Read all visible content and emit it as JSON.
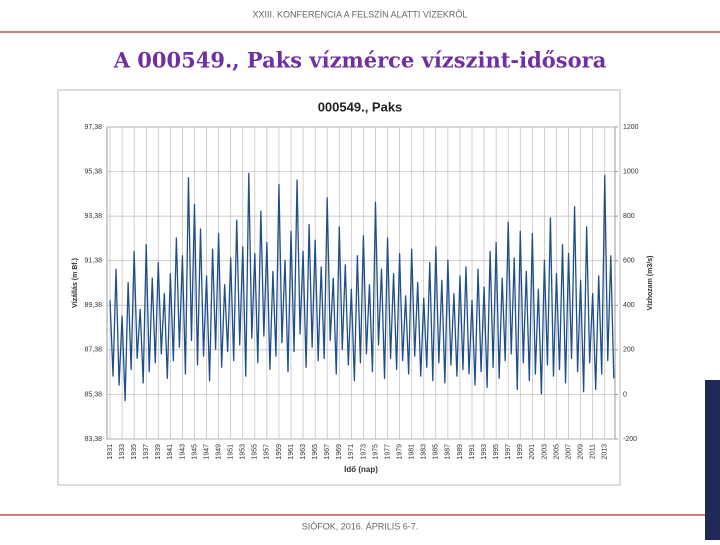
{
  "header": "XXIII. KONFERENCIA A FELSZÍN ALATTI VÍZEKRŐL",
  "slide_title": "A 000549., Paks vízmérce vízszint-idősora",
  "footer": "SIÓFOK, 2016. ÁPRILIS 6-7.",
  "chart_data": {
    "type": "line",
    "title": "000549., Paks",
    "xlabel": "Idő (nap)",
    "ylabel": "Vízállás (m Bf.)",
    "y2label": "Vízhozam (m3/s)",
    "xlim": [
      1930.5,
      2014.7
    ],
    "xticks": [
      1931,
      1933,
      1935,
      1937,
      1939,
      1941,
      1943,
      1945,
      1947,
      1949,
      1951,
      1953,
      1955,
      1957,
      1959,
      1961,
      1963,
      1965,
      1967,
      1969,
      1971,
      1973,
      1975,
      1977,
      1979,
      1981,
      1983,
      1985,
      1987,
      1989,
      1991,
      1993,
      1995,
      1997,
      1999,
      2001,
      2003,
      2005,
      2007,
      2009,
      2011,
      2013
    ],
    "ylim": [
      83.38,
      97.38
    ],
    "yticks": [
      {
        "value": 83.38,
        "label": "83,38"
      },
      {
        "value": 85.38,
        "label": "85,38"
      },
      {
        "value": 87.38,
        "label": "87,38"
      },
      {
        "value": 89.38,
        "label": "89,38"
      },
      {
        "value": 91.38,
        "label": "91,38"
      },
      {
        "value": 93.38,
        "label": "93,38"
      },
      {
        "value": 95.38,
        "label": "95,38"
      },
      {
        "value": 97.38,
        "label": "97,38"
      }
    ],
    "y2lim": [
      -200,
      1200
    ],
    "y2ticks": [
      -200,
      0,
      200,
      400,
      600,
      800,
      1000,
      1200
    ],
    "grid": true,
    "x": [
      1931,
      1931.5,
      1932,
      1932.5,
      1933,
      1933.5,
      1934,
      1934.5,
      1935,
      1935.5,
      1936,
      1936.5,
      1937,
      1937.5,
      1938,
      1938.5,
      1939,
      1939.5,
      1940,
      1940.5,
      1941,
      1941.5,
      1942,
      1942.5,
      1943,
      1943.5,
      1944,
      1944.5,
      1945,
      1945.5,
      1946,
      1946.5,
      1947,
      1947.5,
      1948,
      1948.5,
      1949,
      1949.5,
      1950,
      1950.5,
      1951,
      1951.5,
      1952,
      1952.5,
      1953,
      1953.5,
      1954,
      1954.5,
      1955,
      1955.5,
      1956,
      1956.5,
      1957,
      1957.5,
      1958,
      1958.5,
      1959,
      1959.5,
      1960,
      1960.5,
      1961,
      1961.5,
      1962,
      1962.5,
      1963,
      1963.5,
      1964,
      1964.5,
      1965,
      1965.5,
      1966,
      1966.5,
      1967,
      1967.5,
      1968,
      1968.5,
      1969,
      1969.5,
      1970,
      1970.5,
      1971,
      1971.5,
      1972,
      1972.5,
      1973,
      1973.5,
      1974,
      1974.5,
      1975,
      1975.5,
      1976,
      1976.5,
      1977,
      1977.5,
      1978,
      1978.5,
      1979,
      1979.5,
      1980,
      1980.5,
      1981,
      1981.5,
      1982,
      1982.5,
      1983,
      1983.5,
      1984,
      1984.5,
      1985,
      1985.5,
      1986,
      1986.5,
      1987,
      1987.5,
      1988,
      1988.5,
      1989,
      1989.5,
      1990,
      1990.5,
      1991,
      1991.5,
      1992,
      1992.5,
      1993,
      1993.5,
      1994,
      1994.5,
      1995,
      1995.5,
      1996,
      1996.5,
      1997,
      1997.5,
      1998,
      1998.5,
      1999,
      1999.5,
      2000,
      2000.5,
      2001,
      2001.5,
      2002,
      2002.5,
      2003,
      2003.5,
      2004,
      2004.5,
      2005,
      2005.5,
      2006,
      2006.5,
      2007,
      2007.5,
      2008,
      2008.5,
      2009,
      2009.5,
      2010,
      2010.5,
      2011,
      2011.5,
      2012,
      2012.5,
      2013,
      2013.5,
      2014,
      2014.5
    ],
    "series": [
      {
        "name": "000549., Paks",
        "color": "#1f4e8c",
        "values": [
          89.6,
          86.2,
          91.0,
          85.8,
          88.9,
          85.1,
          90.4,
          86.5,
          91.8,
          87.0,
          89.2,
          85.9,
          92.1,
          86.4,
          90.6,
          86.8,
          91.3,
          87.2,
          89.9,
          86.1,
          90.8,
          86.9,
          92.4,
          87.5,
          91.6,
          86.3,
          95.1,
          87.8,
          93.9,
          86.7,
          92.8,
          87.1,
          90.7,
          86.0,
          91.9,
          87.4,
          92.6,
          86.6,
          90.3,
          87.3,
          91.5,
          86.9,
          93.2,
          87.6,
          92.0,
          86.2,
          95.3,
          87.9,
          91.7,
          86.8,
          93.6,
          88.0,
          92.2,
          86.5,
          90.9,
          87.1,
          94.8,
          87.7,
          91.4,
          86.4,
          92.7,
          87.3,
          95.0,
          88.1,
          91.8,
          86.6,
          93.0,
          87.5,
          92.3,
          86.9,
          91.1,
          87.0,
          94.2,
          87.8,
          90.6,
          86.3,
          92.9,
          87.4,
          91.2,
          86.7,
          90.1,
          86.0,
          91.6,
          86.8,
          92.5,
          87.2,
          90.3,
          86.4,
          94.0,
          87.6,
          91.0,
          86.1,
          92.4,
          87.0,
          90.8,
          86.5,
          91.7,
          86.9,
          89.8,
          86.3,
          91.9,
          87.1,
          90.4,
          86.2,
          89.7,
          86.6,
          91.3,
          86.0,
          92.0,
          86.8,
          90.5,
          85.9,
          91.4,
          86.7,
          89.9,
          86.2,
          90.7,
          86.5,
          91.1,
          86.3,
          89.6,
          85.8,
          91.0,
          86.4,
          90.2,
          85.7,
          91.8,
          86.6,
          92.2,
          86.1,
          90.6,
          86.9,
          93.1,
          87.2,
          91.5,
          85.6,
          92.7,
          86.8,
          90.9,
          86.0,
          92.6,
          86.3,
          90.1,
          85.4,
          91.4,
          86.7,
          93.3,
          86.2,
          90.8,
          86.5,
          92.1,
          85.9,
          91.7,
          87.0,
          93.8,
          86.4,
          90.5,
          85.5,
          92.9,
          86.8,
          89.9,
          85.6,
          90.7,
          86.3,
          95.2,
          86.9,
          91.6,
          86.1
        ]
      }
    ]
  }
}
